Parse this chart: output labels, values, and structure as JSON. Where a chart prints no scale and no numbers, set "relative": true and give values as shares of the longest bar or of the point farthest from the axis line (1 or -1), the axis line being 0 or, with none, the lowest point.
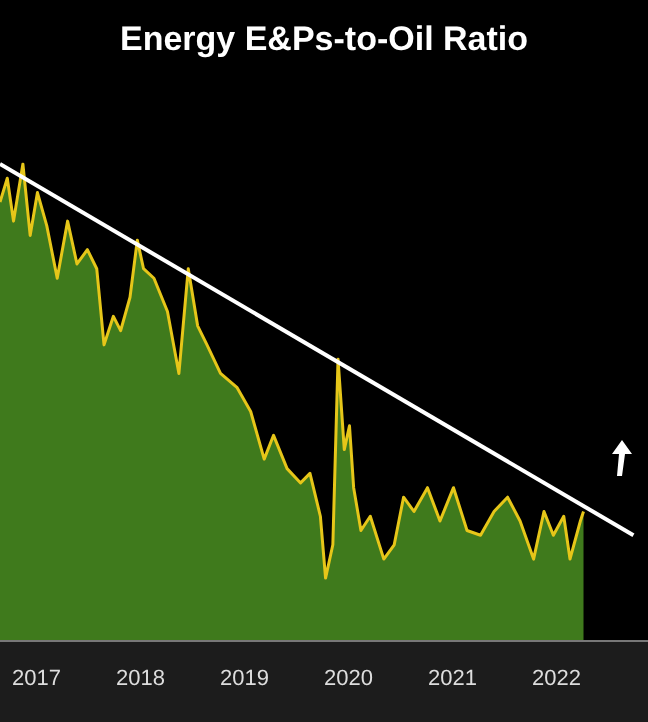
{
  "chart_data": {
    "type": "area",
    "title": "Energy E&Ps-to-Oil Ratio",
    "relative": true,
    "grid": false,
    "xlim": [
      2017.15,
      2023.38
    ],
    "xticks": [
      {
        "value": 2017.5,
        "label": "2017"
      },
      {
        "value": 2018.5,
        "label": "2018"
      },
      {
        "value": 2019.5,
        "label": "2019"
      },
      {
        "value": 2020.5,
        "label": "2020"
      },
      {
        "value": 2021.5,
        "label": "2021"
      },
      {
        "value": 2022.5,
        "label": "2022"
      }
    ],
    "series": [
      {
        "color": "#3f7a1c",
        "x": [
          2017.15,
          2017.22,
          2017.28,
          2017.37,
          2017.44,
          2017.51,
          2017.6,
          2017.7,
          2017.8,
          2017.89,
          2017.99,
          2018.08,
          2018.15,
          2018.24,
          2018.31,
          2018.4,
          2018.47,
          2018.53,
          2018.63,
          2018.76,
          2018.87,
          2018.96,
          2019.05,
          2019.14,
          2019.27,
          2019.43,
          2019.56,
          2019.69,
          2019.78,
          2019.91,
          2020.04,
          2020.13,
          2020.23,
          2020.28,
          2020.35,
          2020.4,
          2020.46,
          2020.51,
          2020.55,
          2020.62,
          2020.71,
          2020.84,
          2020.94,
          2021.03,
          2021.13,
          2021.26,
          2021.38,
          2021.51,
          2021.64,
          2021.77,
          2021.9,
          2022.03,
          2022.15,
          2022.28,
          2022.38,
          2022.47,
          2022.57,
          2022.63,
          2022.73,
          2022.76
        ],
        "values": [
          0.92,
          0.97,
          0.88,
          1.0,
          0.85,
          0.94,
          0.87,
          0.76,
          0.88,
          0.79,
          0.82,
          0.78,
          0.62,
          0.68,
          0.65,
          0.72,
          0.84,
          0.78,
          0.76,
          0.69,
          0.56,
          0.78,
          0.66,
          0.62,
          0.56,
          0.53,
          0.48,
          0.38,
          0.43,
          0.36,
          0.33,
          0.35,
          0.26,
          0.13,
          0.2,
          0.59,
          0.4,
          0.45,
          0.32,
          0.23,
          0.26,
          0.17,
          0.2,
          0.3,
          0.27,
          0.32,
          0.25,
          0.32,
          0.23,
          0.22,
          0.27,
          0.3,
          0.25,
          0.17,
          0.27,
          0.22,
          0.26,
          0.17,
          0.25,
          0.27
        ]
      },
      {
        "type": "line",
        "color": "#ffffff",
        "x": [
          2017.15,
          2023.24
        ],
        "values": [
          1.0,
          0.22
        ]
      }
    ]
  }
}
